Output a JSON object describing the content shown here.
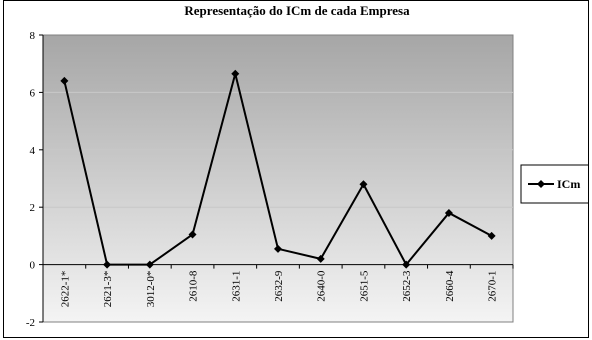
{
  "chart_data": {
    "type": "line",
    "title": "Representação do ICm de cada Empresa",
    "xlabel": "",
    "ylabel": "",
    "ylim": [
      -2,
      8
    ],
    "yticks": [
      -2,
      0,
      2,
      4,
      6,
      8
    ],
    "grid": true,
    "legend": "right",
    "categories": [
      "2622-1*",
      "2621-3*",
      "3012-0*",
      "2610-8",
      "2631-1",
      "2632-9",
      "2640-0",
      "2651-5",
      "2652-3",
      "2660-4",
      "2670-1"
    ],
    "series": [
      {
        "name": "ICm",
        "color": "#000000",
        "marker": "diamond",
        "values": [
          6.4,
          0.0,
          0.0,
          1.05,
          6.65,
          0.55,
          0.2,
          2.8,
          0.0,
          1.8,
          1.0
        ]
      }
    ],
    "plot_background": {
      "top": "#a6a6a6",
      "bottom": "#f4f4f4"
    }
  }
}
